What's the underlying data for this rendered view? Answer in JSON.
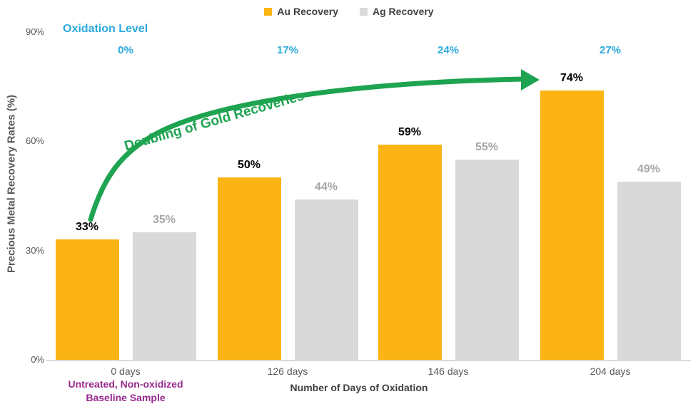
{
  "legend": {
    "items": [
      {
        "label": "Au Recovery",
        "color": "#FBB414"
      },
      {
        "label": "Ag Recovery",
        "color": "#D9D9D9"
      }
    ]
  },
  "axes": {
    "y_title": "Precious Metal Recovery Rates (%)",
    "x_title": "Number of Days of Oxidation"
  },
  "oxidation": {
    "title": "Oxidation Level",
    "values": [
      "0%",
      "17%",
      "24%",
      "27%"
    ]
  },
  "arrow_annotation": {
    "text": "Doubling of Gold Recoveries"
  },
  "baseline_note": {
    "line1": "Untreated, Non-oxidized",
    "line2": "Baseline Sample"
  },
  "colors": {
    "au_bar": "#FBB414",
    "ag_bar": "#D9D9D9",
    "au_value_label": "#000000",
    "ag_value_label": "#A6A6A6",
    "oxidation_text": "#2BA9DC",
    "arrow_green": "#1EA350",
    "note_purple": "#97288E",
    "axis_text": "#595959",
    "legend_text": "#404040"
  },
  "chart_data": {
    "type": "bar",
    "title": "",
    "categories": [
      "0 days",
      "126 days",
      "146 days",
      "204 days"
    ],
    "series": [
      {
        "name": "Au Recovery",
        "color": "#FBB414",
        "label_color": "#000000",
        "values": [
          33,
          50,
          59,
          74
        ]
      },
      {
        "name": "Ag Recovery",
        "color": "#D9D9D9",
        "label_color": "#A6A6A6",
        "values": [
          35,
          44,
          55,
          49
        ]
      }
    ],
    "value_suffix": "%",
    "ylabel": "Precious Metal Recovery Rates (%)",
    "xlabel": "Number of Days of Oxidation",
    "ylim": [
      0,
      90
    ],
    "yticks": [
      {
        "value": 90,
        "label": "90%"
      },
      {
        "value": 60,
        "label": "60%"
      },
      {
        "value": 30,
        "label": "30%"
      },
      {
        "value": 0,
        "label": "0%"
      }
    ],
    "grid": false,
    "legend_position": "top-center",
    "annotations": {
      "oxidation_level": {
        "title": "Oxidation Level",
        "per_category": [
          "0%",
          "17%",
          "24%",
          "27%"
        ]
      },
      "arrow_text": "Doubling of Gold Recoveries",
      "baseline_note": "Untreated, Non-oxidized Baseline Sample"
    }
  }
}
